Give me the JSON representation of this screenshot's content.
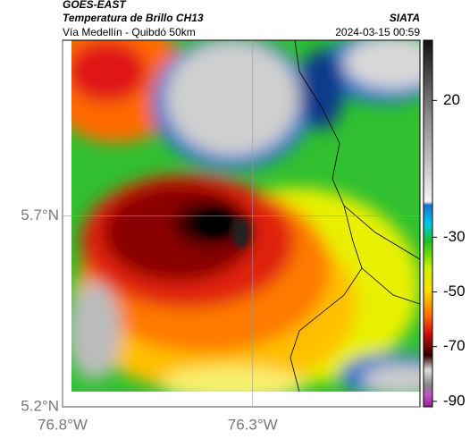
{
  "header": {
    "satellite": "GOES-EAST",
    "title": "Temperatura de Brillo CH13",
    "brand": "SIATA",
    "subtitle": "Vía Medellín - Quibdó 50km",
    "timestamp": "2024-03-15 00:59"
  },
  "map": {
    "latlim": [
      5.2,
      6.16
    ],
    "lonlim": [
      -76.8,
      -75.86
    ],
    "lat_ticks": [
      {
        "value": 5.7,
        "label": "5.7°N"
      },
      {
        "value": 5.2,
        "label": "5.2°N"
      }
    ],
    "lon_ticks": [
      {
        "value": -76.8,
        "label": "76.8°W"
      },
      {
        "value": -76.3,
        "label": "76.3°W"
      }
    ],
    "grid": true
  },
  "colorbar": {
    "lim": [
      -92,
      42
    ],
    "ticks": [
      20,
      -30,
      -50,
      -70,
      -90
    ]
  }
}
